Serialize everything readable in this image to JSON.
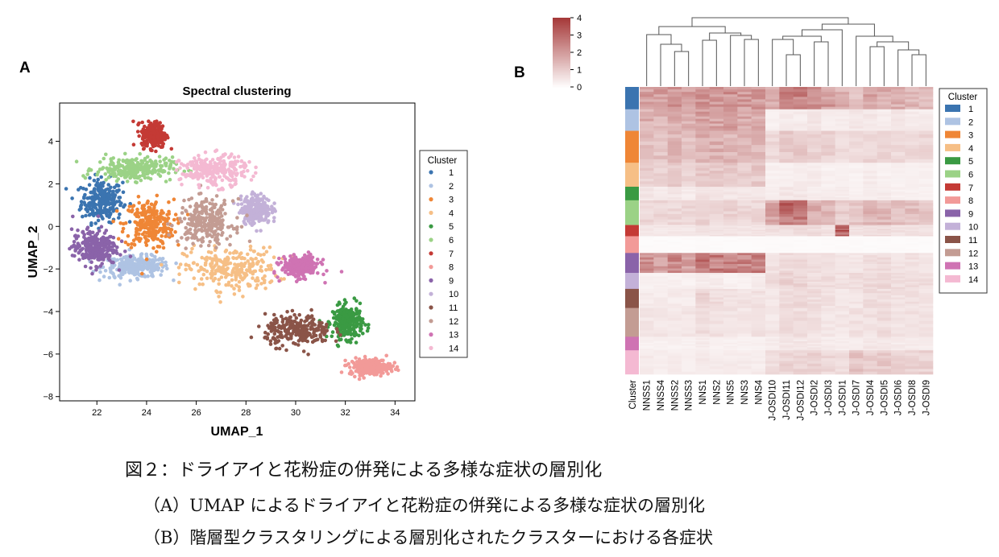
{
  "caption": {
    "title": "図２：ドライアイと花粉症の併発による多様な症状の層別化",
    "line_a": "（A）UMAP によるドライアイと花粉症の併発による多様な症状の層別化",
    "line_b": "（B）階層型クラスタリングによる層別化されたクラスターにおける各症状"
  },
  "chart_data": [
    {
      "type": "scatter",
      "panel_label": "A",
      "title": "Spectral clustering",
      "xlabel": "UMAP_1",
      "ylabel": "UMAP_2",
      "xlim": [
        20.5,
        34.8
      ],
      "ylim": [
        -8.2,
        5.8
      ],
      "xticks": [
        22,
        24,
        26,
        28,
        30,
        32,
        34
      ],
      "yticks": [
        -8,
        -6,
        -4,
        -2,
        0,
        2,
        4
      ],
      "legend": {
        "title": "Cluster",
        "position": "right"
      },
      "series": [
        {
          "name": "1",
          "color": "#3b74b0",
          "center": [
            22.2,
            1.2
          ],
          "spread": [
            0.75,
            0.9
          ]
        },
        {
          "name": "2",
          "color": "#aec3e3",
          "center": [
            23.6,
            -1.9
          ],
          "spread": [
            1.2,
            0.45
          ]
        },
        {
          "name": "3",
          "color": "#ef8636",
          "center": [
            24.1,
            0.1
          ],
          "spread": [
            0.9,
            1.05
          ]
        },
        {
          "name": "4",
          "color": "#f6bf86",
          "center": [
            27.4,
            -2.0
          ],
          "spread": [
            1.7,
            0.9
          ]
        },
        {
          "name": "5",
          "color": "#3a9a43",
          "center": [
            32.1,
            -4.5
          ],
          "spread": [
            0.55,
            0.7
          ]
        },
        {
          "name": "6",
          "color": "#9bd286",
          "center": [
            23.5,
            2.7
          ],
          "spread": [
            1.4,
            0.5
          ]
        },
        {
          "name": "7",
          "color": "#c43a35",
          "center": [
            24.3,
            4.3
          ],
          "spread": [
            0.45,
            0.55
          ]
        },
        {
          "name": "8",
          "color": "#f29a98",
          "center": [
            33.0,
            -6.6
          ],
          "spread": [
            0.75,
            0.35
          ]
        },
        {
          "name": "9",
          "color": "#8a63a9",
          "center": [
            21.9,
            -1.0
          ],
          "spread": [
            0.8,
            0.75
          ]
        },
        {
          "name": "10",
          "color": "#c3b1d8",
          "center": [
            28.4,
            0.8
          ],
          "spread": [
            0.55,
            0.6
          ]
        },
        {
          "name": "11",
          "color": "#8a5448",
          "center": [
            30.1,
            -4.9
          ],
          "spread": [
            1.2,
            0.65
          ]
        },
        {
          "name": "12",
          "color": "#c39c93",
          "center": [
            26.4,
            0.2
          ],
          "spread": [
            1.0,
            0.95
          ]
        },
        {
          "name": "13",
          "color": "#cf73b3",
          "center": [
            30.2,
            -1.9
          ],
          "spread": [
            0.7,
            0.45
          ]
        },
        {
          "name": "14",
          "color": "#f4b9d2",
          "center": [
            26.7,
            2.6
          ],
          "spread": [
            1.2,
            0.65
          ]
        }
      ]
    },
    {
      "type": "heatmap",
      "panel_label": "B",
      "colorbar": {
        "min": 0,
        "max": 4,
        "ticks": [
          0,
          1,
          2,
          3,
          4
        ],
        "low_color": "#ffffff",
        "high_color": "#a63a3a"
      },
      "columns": [
        "NNSS1",
        "NNSS4",
        "NNSS2",
        "NNSS3",
        "NNS1",
        "NNS2",
        "NNS5",
        "NNS3",
        "NNS4",
        "J-OSDI10",
        "J-OSDI11",
        "J-OSDI12",
        "J-OSDI2",
        "J-OSDI3",
        "J-OSDI1",
        "J-OSDI7",
        "J-OSDI4",
        "J-OSDI5",
        "J-OSDI6",
        "J-OSDI8",
        "J-OSDI9"
      ],
      "row_header": "Cluster",
      "legend": {
        "title": "Cluster",
        "position": "right"
      },
      "clusters": [
        {
          "name": "1",
          "color": "#3b74b0",
          "size": 28,
          "values": [
            2.0,
            1.9,
            2.1,
            1.9,
            2.3,
            2.1,
            2.2,
            2.0,
            2.1,
            1.7,
            2.5,
            2.6,
            2.3,
            2.0,
            1.6,
            1.2,
            1.8,
            1.7,
            1.6,
            1.5,
            1.4
          ]
        },
        {
          "name": "2",
          "color": "#aec3e3",
          "size": 27,
          "values": [
            1.6,
            1.5,
            1.6,
            1.5,
            2.0,
            1.8,
            1.9,
            1.7,
            1.8,
            0.3,
            0.4,
            0.4,
            0.5,
            0.4,
            0.4,
            0.5,
            0.5,
            0.4,
            0.5,
            0.4,
            0.4
          ]
        },
        {
          "name": "3",
          "color": "#ef8636",
          "size": 40,
          "values": [
            1.3,
            1.2,
            1.4,
            1.2,
            1.6,
            1.6,
            1.5,
            1.4,
            1.5,
            0.8,
            1.0,
            1.1,
            1.0,
            0.9,
            0.7,
            0.7,
            0.9,
            0.9,
            0.8,
            0.8,
            0.8
          ]
        },
        {
          "name": "4",
          "color": "#f6bf86",
          "size": 30,
          "values": [
            1.0,
            0.9,
            1.0,
            0.9,
            1.2,
            1.1,
            1.1,
            1.0,
            1.1,
            0.3,
            0.3,
            0.4,
            0.4,
            0.3,
            0.3,
            0.3,
            0.4,
            0.3,
            0.3,
            0.3,
            0.3
          ]
        },
        {
          "name": "5",
          "color": "#3a9a43",
          "size": 17,
          "values": [
            0.5,
            0.4,
            0.5,
            0.4,
            0.6,
            0.5,
            0.5,
            0.5,
            0.5,
            0.4,
            0.5,
            0.5,
            0.4,
            0.4,
            0.4,
            0.3,
            0.4,
            0.4,
            0.3,
            0.3,
            0.3
          ]
        },
        {
          "name": "6",
          "color": "#9bd286",
          "size": 31,
          "values": [
            0.8,
            0.8,
            0.8,
            0.8,
            0.9,
            0.8,
            0.9,
            0.8,
            0.8,
            1.9,
            3.0,
            2.6,
            1.6,
            1.4,
            1.0,
            1.2,
            1.5,
            1.4,
            1.3,
            1.3,
            1.2
          ]
        },
        {
          "name": "7",
          "color": "#c43a35",
          "size": 14,
          "values": [
            0.5,
            0.5,
            0.5,
            0.5,
            0.6,
            0.6,
            0.6,
            0.5,
            0.6,
            0.6,
            0.7,
            0.7,
            0.7,
            0.6,
            3.3,
            0.6,
            0.7,
            0.7,
            0.6,
            0.6,
            0.6
          ]
        },
        {
          "name": "8",
          "color": "#f29a98",
          "size": 21,
          "values": [
            0.1,
            0.1,
            0.1,
            0.1,
            0.1,
            0.1,
            0.1,
            0.1,
            0.1,
            0.1,
            0.1,
            0.1,
            0.1,
            0.1,
            0.1,
            0.1,
            0.1,
            0.1,
            0.1,
            0.1,
            0.1
          ]
        },
        {
          "name": "9",
          "color": "#8a63a9",
          "size": 25,
          "values": [
            2.2,
            2.0,
            2.3,
            2.0,
            2.8,
            2.6,
            2.5,
            2.4,
            2.7,
            0.6,
            0.7,
            0.8,
            0.7,
            0.6,
            0.5,
            0.5,
            0.7,
            0.7,
            0.6,
            0.6,
            0.5
          ]
        },
        {
          "name": "10",
          "color": "#c3b1d8",
          "size": 20,
          "values": [
            0.3,
            0.3,
            0.3,
            0.3,
            0.4,
            0.4,
            0.3,
            0.3,
            0.4,
            0.7,
            0.9,
            0.9,
            0.7,
            0.7,
            0.6,
            0.7,
            0.8,
            0.8,
            0.7,
            0.7,
            0.7
          ]
        },
        {
          "name": "11",
          "color": "#8a5448",
          "size": 24,
          "values": [
            0.4,
            0.4,
            0.4,
            0.4,
            0.9,
            0.7,
            0.6,
            0.6,
            0.6,
            0.5,
            0.7,
            0.8,
            0.7,
            0.6,
            0.5,
            0.5,
            0.7,
            0.7,
            0.6,
            0.6,
            0.6
          ]
        },
        {
          "name": "12",
          "color": "#c39c93",
          "size": 36,
          "values": [
            0.5,
            0.5,
            0.5,
            0.5,
            0.7,
            0.6,
            0.6,
            0.5,
            0.6,
            0.5,
            0.7,
            0.7,
            0.6,
            0.5,
            0.5,
            0.6,
            0.6,
            0.7,
            0.6,
            0.6,
            0.6
          ]
        },
        {
          "name": "13",
          "color": "#cf73b3",
          "size": 17,
          "values": [
            0.3,
            0.3,
            0.3,
            0.3,
            0.4,
            0.3,
            0.3,
            0.3,
            0.3,
            0.4,
            0.5,
            0.5,
            0.5,
            0.4,
            0.4,
            0.4,
            0.5,
            0.5,
            0.4,
            0.4,
            0.4
          ]
        },
        {
          "name": "14",
          "color": "#f4b9d2",
          "size": 30,
          "values": [
            0.4,
            0.4,
            0.4,
            0.4,
            0.5,
            0.4,
            0.4,
            0.4,
            0.4,
            0.7,
            0.9,
            0.9,
            0.9,
            0.8,
            0.7,
            1.2,
            1.0,
            1.1,
            0.9,
            0.9,
            0.9
          ]
        }
      ]
    }
  ]
}
